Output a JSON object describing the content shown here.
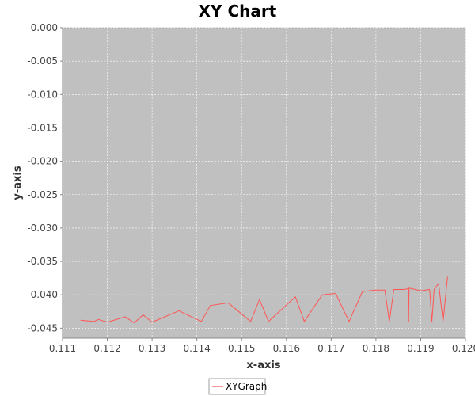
{
  "chart_data": {
    "type": "line",
    "title": "XY Chart",
    "xlabel": "x-axis",
    "ylabel": "y-axis",
    "xlim": [
      0.111,
      0.12
    ],
    "ylim": [
      -0.0465,
      0.0
    ],
    "x_ticks": [
      "0.111",
      "0.112",
      "0.113",
      "0.114",
      "0.115",
      "0.116",
      "0.117",
      "0.118",
      "0.119",
      "0.120"
    ],
    "y_ticks": [
      "0.000",
      "-0.005",
      "-0.010",
      "-0.015",
      "-0.020",
      "-0.025",
      "-0.030",
      "-0.035",
      "-0.040",
      "-0.045"
    ],
    "grid": true,
    "legend": "bottom-center",
    "plot_background": "#c0c0c0",
    "series": [
      {
        "name": "XYGraph",
        "color": "#ff5555",
        "points": [
          [
            0.1114,
            -0.0438
          ],
          [
            0.1117,
            -0.044
          ],
          [
            0.1118,
            -0.0437
          ],
          [
            0.112,
            -0.0441
          ],
          [
            0.1124,
            -0.0433
          ],
          [
            0.1126,
            -0.0442
          ],
          [
            0.1128,
            -0.043
          ],
          [
            0.113,
            -0.0441
          ],
          [
            0.1136,
            -0.0424
          ],
          [
            0.1141,
            -0.044
          ],
          [
            0.1143,
            -0.0416
          ],
          [
            0.1147,
            -0.0412
          ],
          [
            0.1152,
            -0.044
          ],
          [
            0.1154,
            -0.0407
          ],
          [
            0.1156,
            -0.044
          ],
          [
            0.1162,
            -0.0403
          ],
          [
            0.1164,
            -0.044
          ],
          [
            0.1168,
            -0.04
          ],
          [
            0.1171,
            -0.0398
          ],
          [
            0.1174,
            -0.044
          ],
          [
            0.1177,
            -0.0395
          ],
          [
            0.118,
            -0.0393
          ],
          [
            0.1182,
            -0.0393
          ],
          [
            0.1183,
            -0.044
          ],
          [
            0.1184,
            -0.0392
          ],
          [
            0.1186,
            -0.0392
          ],
          [
            0.11872,
            -0.0391
          ],
          [
            0.11873,
            -0.044
          ],
          [
            0.11874,
            -0.039
          ],
          [
            0.119,
            -0.0394
          ],
          [
            0.1192,
            -0.0392
          ],
          [
            0.11925,
            -0.044
          ],
          [
            0.1193,
            -0.0392
          ],
          [
            0.1194,
            -0.0383
          ],
          [
            0.1195,
            -0.044
          ],
          [
            0.1196,
            -0.0373
          ]
        ]
      }
    ]
  }
}
